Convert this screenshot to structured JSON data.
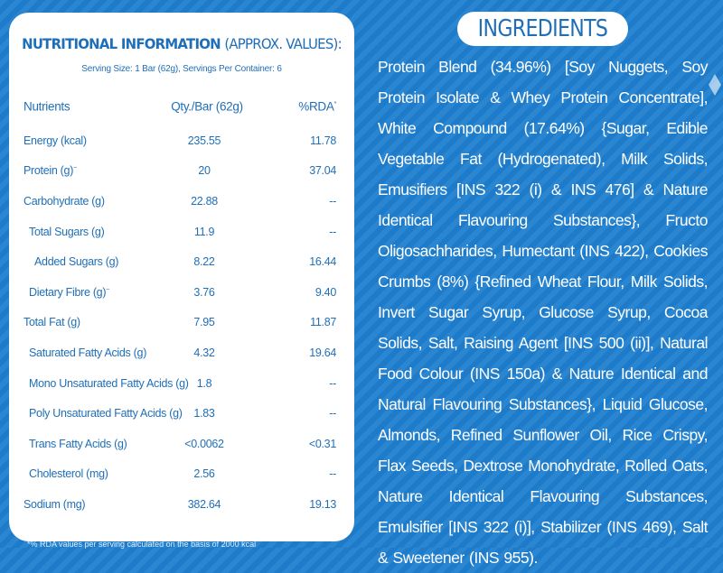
{
  "nutrition": {
    "title_bold": "NUTRITIONAL INFORMATION",
    "title_light": "(APPROX. VALUES):",
    "serving": "Serving Size: 1 Bar (62g), Servings Per Container: 6",
    "headers": {
      "nutrient": "Nutrients",
      "qty": "Qty./Bar (62g)",
      "rda": "%RDA",
      "rda_mark": "*"
    },
    "rows": [
      {
        "name": "Energy (kcal)",
        "mark": "",
        "qty": "235.55",
        "rda": "11.78",
        "indent": 0
      },
      {
        "name": "Protein (g)",
        "mark": "~",
        "qty": "20",
        "rda": "37.04",
        "indent": 0
      },
      {
        "name": "Carbohydrate (g)",
        "mark": "",
        "qty": "22.88",
        "rda": "--",
        "indent": 0
      },
      {
        "name": "Total Sugars (g)",
        "mark": "",
        "qty": "11.9",
        "rda": "--",
        "indent": 1
      },
      {
        "name": "Added Sugars (g)",
        "mark": "",
        "qty": "8.22",
        "rda": "16.44",
        "indent": 2
      },
      {
        "name": "Dietary Fibre (g)",
        "mark": "~",
        "qty": "3.76",
        "rda": "9.40",
        "indent": 1
      },
      {
        "name": "Total Fat (g)",
        "mark": "",
        "qty": "7.95",
        "rda": "11.87",
        "indent": 0
      },
      {
        "name": "Saturated Fatty Acids (g)",
        "mark": "",
        "qty": "4.32",
        "rda": "19.64",
        "indent": 1
      },
      {
        "name": "Mono Unsaturated Fatty Acids (g)",
        "mark": "",
        "qty": "1.8",
        "rda": "--",
        "indent": 1
      },
      {
        "name": "Poly Unsaturated Fatty Acids (g)",
        "mark": "",
        "qty": "1.83",
        "rda": "--",
        "indent": 1
      },
      {
        "name": "Trans Fatty Acids (g)",
        "mark": "",
        "qty": "<0.0062",
        "rda": "<0.31",
        "indent": 1
      },
      {
        "name": "Cholesterol (mg)",
        "mark": "",
        "qty": "2.56",
        "rda": "--",
        "indent": 1
      },
      {
        "name": "Sodium (mg)",
        "mark": "",
        "qty": "382.64",
        "rda": "19.13",
        "indent": 0
      }
    ],
    "footnote": "*% RDA values per serving calculated on the basis of 2000 kcal"
  },
  "ingredients": {
    "title": "INGREDIENTS",
    "text": "Protein Blend (34.96%) [Soy Nuggets, Soy Protein Isolate & Whey Protein Concentrate], White Compound (17.64%) {Sugar, Edible Vegetable Fat (Hydrogenated), Milk Solids, Emusifiers [INS 322 (i) & INS 476] & Nature Identical Flavouring Substances}, Fructo Oligosachharides, Humectant (INS 422), Cookies Crumbs (8%) {Refined Wheat Flour, Milk Solids, Invert Sugar Syrup, Glucose Syrup, Cocoa Solids, Salt, Raising Agent [INS 500 (ii)], Natural Food Colour (INS 150a) & Nature Identical and Natural Flavouring Substances}, Liquid Glucose, Almonds, Refined Sunflower Oil, Rice Crispy, Flax Seeds, Dextrose Monohydrate, Rolled Oats, Nature Identical Flavouring Substances, Emulsifier [INS 322 (i)], Stabilizer (INS 469), Salt & Sweetener (INS 955)."
  },
  "colors": {
    "background": "#1f7fcf",
    "accent": "#1f6fb8",
    "panel": "#ffffff"
  }
}
